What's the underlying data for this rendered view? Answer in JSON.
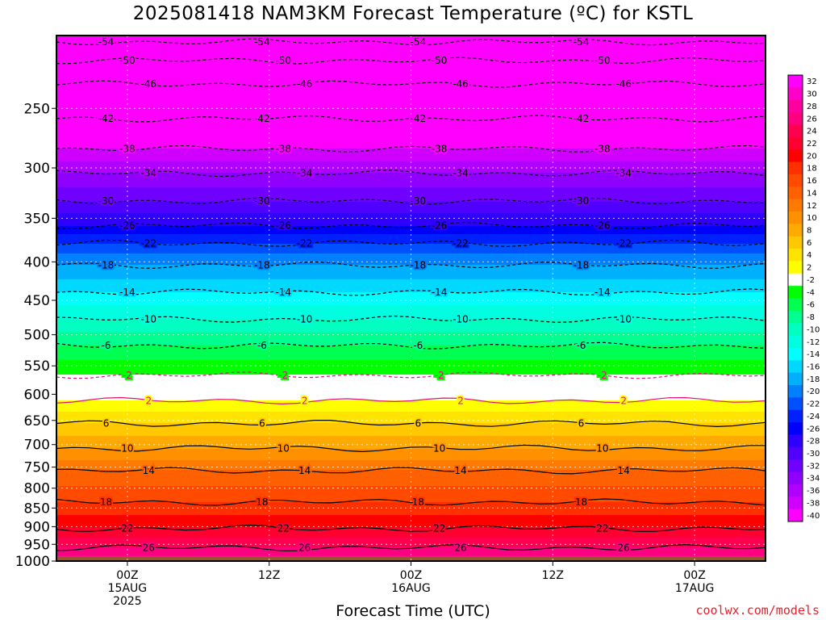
{
  "header": {
    "title": "2025081418 NAM3KM Forecast Temperature (ºC) for KSTL"
  },
  "footer": {
    "xlabel": "Forecast Time (UTC)",
    "credit": "coolwx.com/models"
  },
  "chart_data": {
    "type": "heatmap",
    "title": "2025081418 NAM3KM Forecast Temperature (ºC) for KSTL",
    "xlabel": "Forecast Time (UTC)",
    "ylabel": "",
    "x_ticks": [
      {
        "hour": 6,
        "lines": [
          "00Z",
          "15AUG",
          "2025"
        ]
      },
      {
        "hour": 18,
        "lines": [
          "12Z"
        ]
      },
      {
        "hour": 30,
        "lines": [
          "00Z",
          "16AUG"
        ]
      },
      {
        "hour": 42,
        "lines": [
          "12Z"
        ]
      },
      {
        "hour": 54,
        "lines": [
          "00Z",
          "17AUG"
        ]
      }
    ],
    "xlim_hours": [
      0,
      60
    ],
    "y_ticks": [
      250,
      300,
      350,
      400,
      450,
      500,
      550,
      600,
      650,
      700,
      750,
      800,
      850,
      900,
      950,
      1000
    ],
    "ylim_hPa": [
      1000,
      200
    ],
    "y_scale": "log",
    "surface_pressure_hPa": 985,
    "colorbar_levels": [
      32,
      30,
      28,
      26,
      24,
      22,
      20,
      18,
      16,
      14,
      12,
      10,
      8,
      6,
      4,
      2,
      -2,
      -4,
      -6,
      -8,
      -10,
      -12,
      -14,
      -16,
      -18,
      -20,
      -22,
      -24,
      -26,
      -28,
      -30,
      -32,
      -34,
      -36,
      -38,
      -40
    ],
    "colorbar_colors": [
      "#ff00ff",
      "#ff00c8",
      "#ff00a0",
      "#ff0080",
      "#ff0050",
      "#ff0030",
      "#ff0000",
      "#ff3000",
      "#ff4a00",
      "#ff6000",
      "#ff7a00",
      "#ff9000",
      "#ffaa00",
      "#ffc800",
      "#ffe400",
      "#ffff00",
      "#ffffff",
      "#00ff00",
      "#00ff50",
      "#00ff90",
      "#00ffc0",
      "#00ffe0",
      "#00ffff",
      "#00d8ff",
      "#00b0ff",
      "#0080ff",
      "#0050ff",
      "#0020ff",
      "#0000ff",
      "#3000ff",
      "#5000ff",
      "#7000ff",
      "#9000ff",
      "#b000ff",
      "#d000ff",
      "#ff00ff"
    ],
    "isotherms": [
      {
        "temp": -54,
        "p": 204
      },
      {
        "temp": -50,
        "p": 216
      },
      {
        "temp": -46,
        "p": 232
      },
      {
        "temp": -42,
        "p": 258
      },
      {
        "temp": -38,
        "p": 283
      },
      {
        "temp": -34,
        "p": 305
      },
      {
        "temp": -30,
        "p": 332
      },
      {
        "temp": -26,
        "p": 358
      },
      {
        "temp": -22,
        "p": 378
      },
      {
        "temp": -18,
        "p": 404
      },
      {
        "temp": -14,
        "p": 439
      },
      {
        "temp": -10,
        "p": 477
      },
      {
        "temp": -6,
        "p": 517
      },
      {
        "temp": -2,
        "p": 566
      },
      {
        "temp": 2,
        "p": 612
      },
      {
        "temp": 6,
        "p": 656
      },
      {
        "temp": 10,
        "p": 708
      },
      {
        "temp": 14,
        "p": 758
      },
      {
        "temp": 18,
        "p": 835
      },
      {
        "temp": 22,
        "p": 905
      },
      {
        "temp": 26,
        "p": 960
      }
    ],
    "legend": "right colorbar"
  }
}
